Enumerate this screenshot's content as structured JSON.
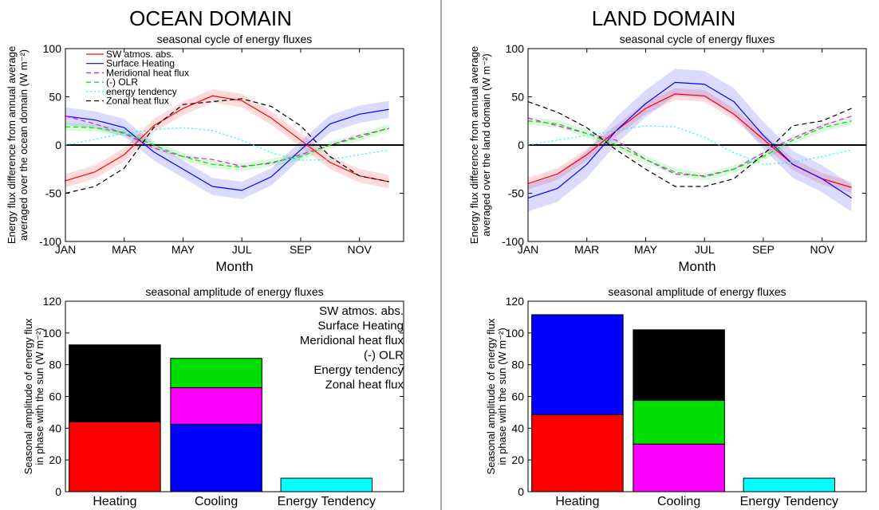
{
  "panels": {
    "ocean": {
      "title": "OCEAN DOMAIN"
    },
    "land": {
      "title": "LAND DOMAIN"
    }
  },
  "colors": {
    "sw": "#ff0000",
    "surface": "#0000ff",
    "merid": "#ff00ff",
    "olr": "#00dd00",
    "tend": "#00ffff",
    "zonal": "#000000"
  },
  "chart_data": [
    {
      "id": "ocean-line",
      "type": "line",
      "title": "seasonal cycle of energy fluxes",
      "xlabel": "Month",
      "ylabel": [
        "Energy flux difference from annual average",
        "averaged over the ocean domain (W m⁻²)"
      ],
      "ylim": [
        -100,
        100
      ],
      "yticks": [
        -100,
        -50,
        0,
        50,
        100
      ],
      "xticks": [
        "JAN",
        "MAR",
        "MAY",
        "JUL",
        "SEP",
        "NOV"
      ],
      "x": [
        1,
        2,
        3,
        4,
        5,
        6,
        7,
        8,
        9,
        10,
        11,
        12
      ],
      "zero_line": true,
      "legend": "top-left",
      "series": [
        {
          "key": "sw",
          "name": "SW atmos. abs.",
          "dash": "solid",
          "band": 7,
          "values": [
            -37,
            -28,
            -10,
            20,
            38,
            51,
            46,
            28,
            5,
            -18,
            -32,
            -38
          ]
        },
        {
          "key": "surface",
          "name": "Surface Heating",
          "dash": "solid",
          "band": 9,
          "values": [
            30,
            26,
            18,
            -7,
            -25,
            -43,
            -47,
            -33,
            -5,
            22,
            32,
            37
          ]
        },
        {
          "key": "merid",
          "name": "Meridional heat flux",
          "dash": "dash",
          "band": 0,
          "values": [
            30,
            22,
            12,
            -3,
            -12,
            -15,
            -22,
            -19,
            -10,
            0,
            10,
            17
          ]
        },
        {
          "key": "olr",
          "name": "(-) OLR",
          "dash": "dash",
          "band": 4,
          "values": [
            19,
            18,
            13,
            0,
            -12,
            -20,
            -23,
            -18,
            -12,
            0,
            8,
            18
          ]
        },
        {
          "key": "tend",
          "name": "energy tendency",
          "dash": "dot",
          "band": 0,
          "values": [
            0,
            6,
            12,
            16,
            18,
            15,
            5,
            -8,
            -16,
            -15,
            -10,
            -5
          ]
        },
        {
          "key": "zonal",
          "name": "Zonal heat flux",
          "dash": "dash",
          "band": 0,
          "values": [
            -50,
            -43,
            -24,
            18,
            42,
            45,
            48,
            40,
            20,
            -12,
            -32,
            -38
          ]
        }
      ]
    },
    {
      "id": "land-line",
      "type": "line",
      "title": "seasonal cycle of energy fluxes",
      "xlabel": "Month",
      "ylabel": [
        "Energy flux difference from annual average",
        "averaged over the land domain (W m⁻²)"
      ],
      "ylim": [
        -100,
        100
      ],
      "yticks": [
        -100,
        -50,
        0,
        50,
        100
      ],
      "xticks": [
        "JAN",
        "MAR",
        "MAY",
        "JUL",
        "SEP",
        "NOV"
      ],
      "x": [
        1,
        2,
        3,
        4,
        5,
        6,
        7,
        8,
        9,
        10,
        11,
        12
      ],
      "zero_line": true,
      "series": [
        {
          "key": "sw",
          "name": "SW atmos. abs.",
          "dash": "solid",
          "band": 6,
          "values": [
            -40,
            -30,
            -10,
            15,
            38,
            53,
            51,
            32,
            6,
            -20,
            -35,
            -44
          ]
        },
        {
          "key": "surface",
          "name": "Surface Heating",
          "dash": "solid",
          "band": 14,
          "values": [
            -55,
            -45,
            -20,
            15,
            43,
            65,
            63,
            45,
            10,
            -20,
            -35,
            -55
          ]
        },
        {
          "key": "merid",
          "name": "Meridional heat flux",
          "dash": "dash",
          "band": 0,
          "values": [
            28,
            20,
            12,
            5,
            -15,
            -30,
            -32,
            -25,
            -8,
            7,
            20,
            30
          ]
        },
        {
          "key": "olr",
          "name": "(-) OLR",
          "dash": "dash",
          "band": 4,
          "values": [
            25,
            22,
            12,
            0,
            -15,
            -28,
            -33,
            -25,
            -12,
            5,
            18,
            25
          ]
        },
        {
          "key": "tend",
          "name": "energy tendency",
          "dash": "dot",
          "band": 0,
          "values": [
            0,
            5,
            10,
            15,
            20,
            19,
            8,
            -8,
            -20,
            -18,
            -12,
            -5
          ]
        },
        {
          "key": "zonal",
          "name": "Zonal heat flux",
          "dash": "dash",
          "band": 0,
          "values": [
            45,
            34,
            18,
            -5,
            -25,
            -43,
            -43,
            -35,
            -10,
            20,
            25,
            38
          ]
        }
      ]
    },
    {
      "id": "ocean-bar",
      "type": "bar",
      "stacked": true,
      "title": "seasonal amplitude of energy fluxes",
      "ylabel": [
        "Seasonal amplitude of energy flux",
        "in phase with the sun (W m⁻²)"
      ],
      "ylim": [
        0,
        120
      ],
      "yticks": [
        0,
        20,
        40,
        60,
        80,
        100,
        120
      ],
      "categories": [
        "Heating",
        "Cooling",
        "Energy Tendency"
      ],
      "stacks": [
        [
          {
            "key": "sw",
            "value": 44
          },
          {
            "key": "zonal",
            "value": 48.5
          }
        ],
        [
          {
            "key": "surface",
            "value": 42.5
          },
          {
            "key": "merid",
            "value": 23
          },
          {
            "key": "olr",
            "value": 18.5
          }
        ],
        [
          {
            "key": "tend",
            "value": 8.5
          }
        ]
      ],
      "legend": "top-right",
      "legend_entries": [
        {
          "key": "sw",
          "name": "SW atmos. abs."
        },
        {
          "key": "surface",
          "name": "Surface Heating"
        },
        {
          "key": "merid",
          "name": "Meridional heat flux"
        },
        {
          "key": "olr",
          "name": "(-) OLR"
        },
        {
          "key": "tend",
          "name": " Energy tendency"
        },
        {
          "key": "zonal",
          "name": "Zonal heat flux"
        }
      ]
    },
    {
      "id": "land-bar",
      "type": "bar",
      "stacked": true,
      "title": "seasonal amplitude of energy fluxes",
      "ylabel": [
        "Seasonal amplitude of energy flux",
        "in phase with the sun (W m⁻²)"
      ],
      "ylim": [
        0,
        120
      ],
      "yticks": [
        0,
        20,
        40,
        60,
        80,
        100,
        120
      ],
      "categories": [
        "Heating",
        "Cooling",
        "Energy Tendency"
      ],
      "stacks": [
        [
          {
            "key": "sw",
            "value": 48.5
          },
          {
            "key": "surface",
            "value": 63
          }
        ],
        [
          {
            "key": "merid",
            "value": 30
          },
          {
            "key": "olr",
            "value": 27.5
          },
          {
            "key": "zonal",
            "value": 44.5
          }
        ],
        [
          {
            "key": "tend",
            "value": 8.5
          }
        ]
      ]
    }
  ]
}
